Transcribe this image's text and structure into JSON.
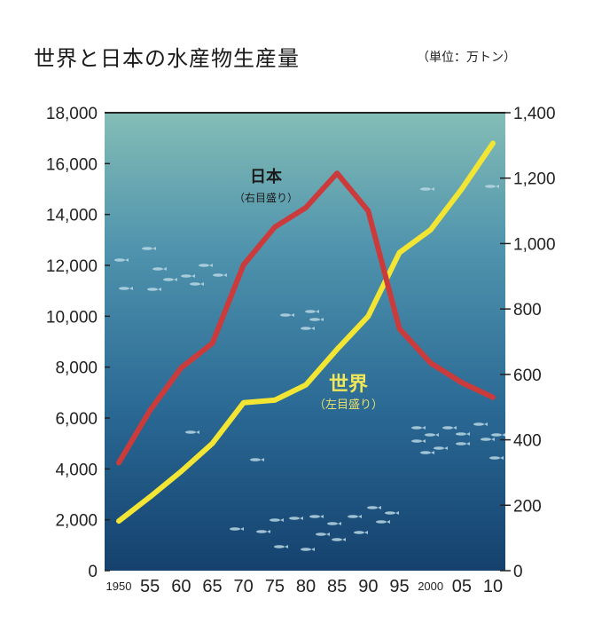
{
  "title": "世界と日本の水産物生産量",
  "unit_note": "（単位：万トン）",
  "chart_data": {
    "type": "line",
    "x": [
      "1950",
      "55",
      "60",
      "65",
      "70",
      "75",
      "80",
      "85",
      "90",
      "95",
      "2000",
      "05",
      "10"
    ],
    "left_axis": {
      "ylim": [
        0,
        18000
      ],
      "ticks": [
        "0",
        "2,000",
        "4,000",
        "6,000",
        "8,000",
        "10,000",
        "12,000",
        "14,000",
        "16,000",
        "18,000"
      ]
    },
    "right_axis": {
      "ylim": [
        0,
        1400
      ],
      "ticks": [
        "0",
        "200",
        "400",
        "600",
        "800",
        "1,000",
        "1,200",
        "1,400"
      ]
    },
    "series": [
      {
        "name": "世界",
        "sub": "（左目盛り）",
        "axis": "left",
        "color": "#f2e533",
        "values": [
          1950,
          2900,
          3900,
          5000,
          6600,
          6700,
          7300,
          8700,
          10000,
          12500,
          13400,
          15000,
          16800
        ]
      },
      {
        "name": "日本",
        "sub": "（右目盛り）",
        "axis": "right",
        "color": "#cc3b3b",
        "values": [
          330,
          490,
          620,
          695,
          935,
          1050,
          1110,
          1215,
          1100,
          740,
          635,
          575,
          530
        ]
      }
    ]
  }
}
